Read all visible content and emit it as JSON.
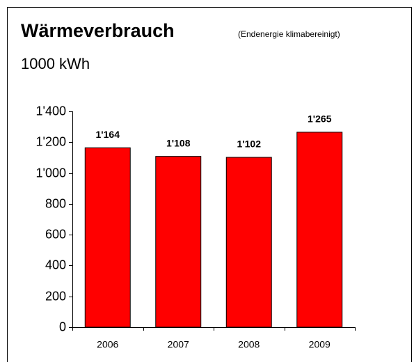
{
  "chart_data": {
    "type": "bar",
    "title": "Wärmeverbrauch",
    "subtitle": "(Endenergie klimabereinigt)",
    "y_label": "1000 kWh",
    "categories": [
      "2006",
      "2007",
      "2008",
      "2009"
    ],
    "values": [
      1164,
      1108,
      1102,
      1265
    ],
    "value_labels": [
      "1'164",
      "1'108",
      "1'102",
      "1'265"
    ],
    "color": "#ff0000",
    "ylim": [
      0,
      1400
    ],
    "yticks": [
      0,
      200,
      400,
      600,
      800,
      {
        "value": 1000,
        "label": "1'000"
      },
      {
        "value": 1200,
        "label": "1'200"
      },
      {
        "value": 1400,
        "label": "1'400"
      }
    ],
    "grid": false
  }
}
